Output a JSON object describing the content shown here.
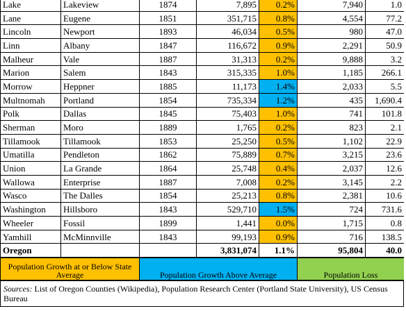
{
  "table": {
    "columns_align": [
      "left",
      "left",
      "center",
      "right",
      "right",
      "right",
      "right"
    ],
    "rows": [
      {
        "cells": [
          "Lake",
          "Lakeview",
          "1874",
          "7,895",
          "0.2%",
          "7,940",
          "1.0"
        ],
        "highlight": "#ffc000"
      },
      {
        "cells": [
          "Lane",
          "Eugene",
          "1851",
          "351,715",
          "0.8%",
          "4,554",
          "77.2"
        ],
        "highlight": "#ffc000"
      },
      {
        "cells": [
          "Lincoln",
          "Newport",
          "1893",
          "46,034",
          "0.5%",
          "980",
          "47.0"
        ],
        "highlight": "#ffc000"
      },
      {
        "cells": [
          "Linn",
          "Albany",
          "1847",
          "116,672",
          "0.9%",
          "2,291",
          "50.9"
        ],
        "highlight": "#ffc000"
      },
      {
        "cells": [
          "Malheur",
          "Vale",
          "1887",
          "31,313",
          "0.2%",
          "9,888",
          "3.2"
        ],
        "highlight": "#ffc000"
      },
      {
        "cells": [
          "Marion",
          "Salem",
          "1843",
          "315,335",
          "1.0%",
          "1,185",
          "266.1"
        ],
        "highlight": "#ffc000"
      },
      {
        "cells": [
          "Morrow",
          "Heppner",
          "1885",
          "11,173",
          "1.4%",
          "2,033",
          "5.5"
        ],
        "highlight": "#00b0f0"
      },
      {
        "cells": [
          "Multnomah",
          "Portland",
          "1854",
          "735,334",
          "1.2%",
          "435",
          "1,690.4"
        ],
        "highlight": "#00b0f0"
      },
      {
        "cells": [
          "Polk",
          "Dallas",
          "1845",
          "75,403",
          "1.0%",
          "741",
          "101.8"
        ],
        "highlight": "#ffc000"
      },
      {
        "cells": [
          "Sherman",
          "Moro",
          "1889",
          "1,765",
          "0.2%",
          "823",
          "2.1"
        ],
        "highlight": "#ffc000"
      },
      {
        "cells": [
          "Tillamook",
          "Tillamook",
          "1853",
          "25,250",
          "0.5%",
          "1,102",
          "22.9"
        ],
        "highlight": "#ffc000"
      },
      {
        "cells": [
          "Umatilla",
          "Pendleton",
          "1862",
          "75,889",
          "0.7%",
          "3,215",
          "23.6"
        ],
        "highlight": "#ffc000"
      },
      {
        "cells": [
          "Union",
          "La Grande",
          "1864",
          "25,748",
          "0.4%",
          "2,037",
          "12.6"
        ],
        "highlight": "#ffc000"
      },
      {
        "cells": [
          "Wallowa",
          "Enterprise",
          "1887",
          "7,008",
          "0.2%",
          "3,145",
          "2.2"
        ],
        "highlight": "#ffc000"
      },
      {
        "cells": [
          "Wasco",
          "The Dalles",
          "1854",
          "25,213",
          "0.8%",
          "2,381",
          "10.6"
        ],
        "highlight": "#ffc000"
      },
      {
        "cells": [
          "Washington",
          "Hillsboro",
          "1843",
          "529,710",
          "1.5%",
          "724",
          "731.6"
        ],
        "highlight": "#00b0f0"
      },
      {
        "cells": [
          "Wheeler",
          "Fossil",
          "1899",
          "1,441",
          "0.0%",
          "1,715",
          "0.8"
        ],
        "highlight": "#ffc000"
      },
      {
        "cells": [
          "Yamhill",
          "McMinnville",
          "1843",
          "99,193",
          "0.9%",
          "716",
          "138.5"
        ],
        "highlight": "#ffc000"
      },
      {
        "cells": [
          "Oregon",
          null,
          null,
          "3,831,074",
          "1.1%",
          "95,804",
          "40.0"
        ],
        "highlight": "#ffffff",
        "bold": true
      }
    ]
  },
  "legend": [
    {
      "label": "Population Growth at or Below State Average",
      "color": "#ffc000"
    },
    {
      "label": "Population Growth Above Average",
      "color": "#00b0f0"
    },
    {
      "label": "Population Loss",
      "color": "#92d050"
    }
  ],
  "sources": {
    "label": "Sources:",
    "text": " List of Oregon Counties (Wikipedia), Population Research Center (Portland State University), US Census Bureau"
  }
}
